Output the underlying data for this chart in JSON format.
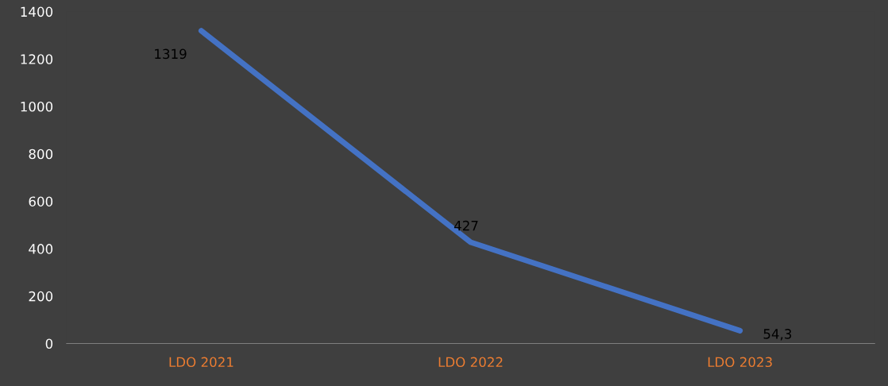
{
  "chart_data": {
    "type": "line",
    "categories": [
      "LDO 2021",
      "LDO 2022",
      "LDO 2023"
    ],
    "series": [
      {
        "color": "#4472c4",
        "values": [
          1319,
          427,
          54.3
        ],
        "value_labels": [
          "1319",
          "427",
          "54,3"
        ]
      }
    ],
    "ylim": [
      0,
      1400
    ],
    "yticks": [
      0,
      200,
      400,
      600,
      800,
      1000,
      1200,
      1400
    ],
    "grid": false,
    "legend": false,
    "marker": "none",
    "line_style": "solid"
  }
}
